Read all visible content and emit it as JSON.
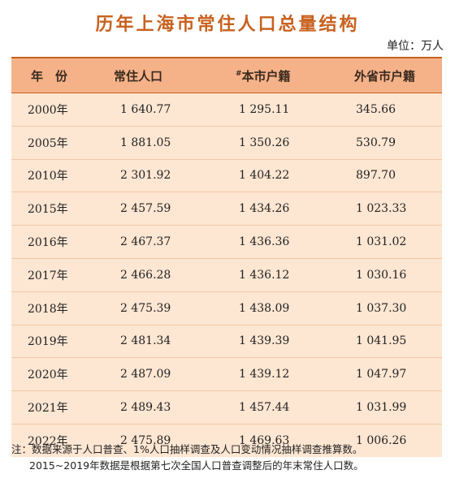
{
  "title": "历年上海市常住人口总量结构",
  "unit": "单位：万人",
  "headers": {
    "year": "年　份",
    "resident": "常住人口",
    "local_prefix": "#",
    "local": "本市户籍",
    "outside": "外省市户籍"
  },
  "rows": [
    {
      "year": "2000年",
      "resident": "1 640.77",
      "local": "1 295.11",
      "outside": "345.66"
    },
    {
      "year": "2005年",
      "resident": "1 881.05",
      "local": "1 350.26",
      "outside": "530.79"
    },
    {
      "year": "2010年",
      "resident": "2 301.92",
      "local": "1 404.22",
      "outside": "897.70"
    },
    {
      "year": "2015年",
      "resident": "2 457.59",
      "local": "1 434.26",
      "outside": "1 023.33"
    },
    {
      "year": "2016年",
      "resident": "2 467.37",
      "local": "1 436.36",
      "outside": "1 031.02"
    },
    {
      "year": "2017年",
      "resident": "2 466.28",
      "local": "1 436.12",
      "outside": "1 030.16"
    },
    {
      "year": "2018年",
      "resident": "2 475.39",
      "local": "1 438.09",
      "outside": "1 037.30"
    },
    {
      "year": "2019年",
      "resident": "2 481.34",
      "local": "1 439.39",
      "outside": "1 041.95"
    },
    {
      "year": "2020年",
      "resident": "2 487.09",
      "local": "1 439.12",
      "outside": "1 047.97"
    },
    {
      "year": "2021年",
      "resident": "2 489.43",
      "local": "1 457.44",
      "outside": "1 031.99"
    },
    {
      "year": "2022年",
      "resident": "2 475.89",
      "local": "1 469.63",
      "outside": "1 006.26"
    }
  ],
  "notes": {
    "line1": "注：数据来源于人口普查、1%人口抽样调查及人口变动情况抽样调查推算数。",
    "line2": "2015~2019年数据是根据第七次全国人口普查调整后的年末常住人口数。"
  },
  "colors": {
    "title": "#c8611f",
    "header_bg": "#f5b289",
    "body_bg": "#fde6d2"
  }
}
